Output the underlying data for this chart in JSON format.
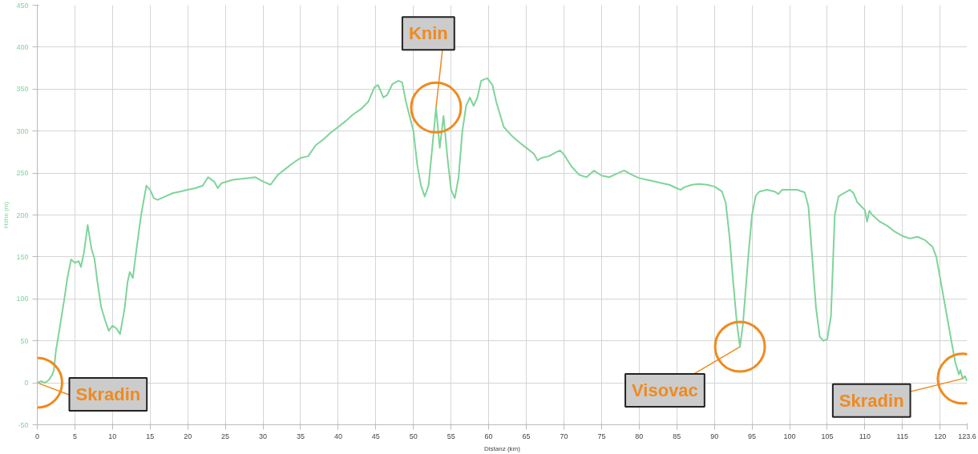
{
  "chart_data": {
    "type": "line",
    "xlabel": "Distanz (km)",
    "ylabel": "Höhe (m)",
    "xlim": [
      0,
      123.6
    ],
    "ylim": [
      -50,
      450
    ],
    "xticks": [
      0,
      5,
      10,
      15,
      20,
      25,
      30,
      35,
      40,
      45,
      50,
      55,
      60,
      65,
      70,
      75,
      80,
      85,
      90,
      95,
      100,
      105,
      110,
      115,
      120,
      123.6
    ],
    "yticks": [
      -50,
      0,
      50,
      100,
      150,
      200,
      250,
      300,
      350,
      400,
      450
    ],
    "grid": true,
    "annotations": [
      {
        "text": "Skradin",
        "x": 0,
        "y": 0
      },
      {
        "text": "Knin",
        "x": 53,
        "y": 328
      },
      {
        "text": "Visovac",
        "x": 93.4,
        "y": 43
      },
      {
        "text": "Skradin",
        "x": 123,
        "y": 5
      }
    ],
    "series": [
      {
        "color": "#7fd49a",
        "x": [
          0,
          0.5,
          1,
          1.5,
          2,
          2.2,
          2.5,
          2.8,
          3.2,
          3.6,
          4,
          4.5,
          5,
          5.5,
          5.8,
          6.2,
          6.7,
          7.2,
          7.6,
          8,
          8.5,
          9,
          9.5,
          10,
          10.5,
          11,
          11.6,
          12,
          12.3,
          12.7,
          13.2,
          13.8,
          14.5,
          15,
          15.5,
          16,
          17,
          18,
          19,
          20,
          21,
          22,
          22.7,
          23.5,
          24,
          24.5,
          26,
          28,
          29,
          30,
          31,
          32,
          33,
          34,
          35,
          36,
          37,
          38,
          39,
          40,
          41,
          42,
          43,
          44,
          44.8,
          45.3,
          46,
          46.5,
          47.2,
          48,
          48.5,
          49,
          50,
          50.5,
          51,
          51.5,
          52,
          52.5,
          53,
          53.5,
          54,
          54.5,
          55,
          55.5,
          56,
          56.5,
          57,
          57.5,
          58,
          58.5,
          59,
          59.8,
          60.5,
          61,
          62,
          63,
          64,
          65,
          66,
          66.5,
          67,
          68,
          69,
          69.5,
          70,
          71,
          72,
          73,
          74,
          75,
          76,
          77,
          78,
          79,
          80,
          81,
          82,
          83,
          84,
          85,
          85.5,
          86,
          87,
          88,
          89,
          90,
          91,
          91.5,
          92,
          92.5,
          93,
          93.4,
          93.8,
          94.5,
          95,
          95.5,
          96,
          97,
          98,
          98.5,
          99,
          100,
          101,
          102,
          102.5,
          103,
          103.5,
          104,
          104.5,
          105,
          105.5,
          106,
          106.5,
          107,
          108,
          108.5,
          109,
          110,
          110.3,
          110.6,
          111,
          112,
          113,
          114,
          115,
          116,
          117,
          118,
          119,
          119.5,
          120,
          120.5,
          121,
          121.5,
          122,
          122.5,
          122.7,
          123,
          123.3,
          123.6
        ],
        "values": [
          0,
          2,
          0,
          3,
          10,
          15,
          40,
          55,
          78,
          100,
          125,
          147,
          143,
          145,
          138,
          155,
          188,
          160,
          148,
          120,
          90,
          75,
          62,
          68,
          65,
          58,
          88,
          120,
          132,
          125,
          160,
          200,
          235,
          230,
          220,
          218,
          222,
          226,
          228,
          230,
          232,
          235,
          245,
          240,
          232,
          238,
          242,
          244,
          245,
          240,
          236,
          248,
          255,
          262,
          268,
          270,
          283,
          290,
          298,
          305,
          312,
          320,
          326,
          335,
          352,
          355,
          340,
          343,
          356,
          360,
          358,
          335,
          300,
          260,
          235,
          222,
          235,
          280,
          328,
          280,
          318,
          270,
          230,
          220,
          245,
          300,
          330,
          340,
          330,
          340,
          360,
          363,
          355,
          335,
          305,
          295,
          287,
          280,
          273,
          265,
          268,
          270,
          275,
          277,
          272,
          258,
          248,
          245,
          253,
          247,
          245,
          249,
          253,
          248,
          244,
          242,
          240,
          238,
          236,
          232,
          230,
          233,
          236,
          237,
          236,
          234,
          228,
          215,
          175,
          120,
          70,
          43,
          70,
          150,
          200,
          223,
          228,
          230,
          228,
          225,
          230,
          230,
          230,
          227,
          210,
          150,
          90,
          55,
          50,
          52,
          80,
          200,
          222,
          225,
          230,
          226,
          215,
          206,
          192,
          205,
          200,
          192,
          187,
          180,
          175,
          172,
          174,
          170,
          162,
          150,
          125,
          100,
          75,
          50,
          25,
          10,
          15,
          5,
          8,
          2
        ]
      }
    ]
  }
}
